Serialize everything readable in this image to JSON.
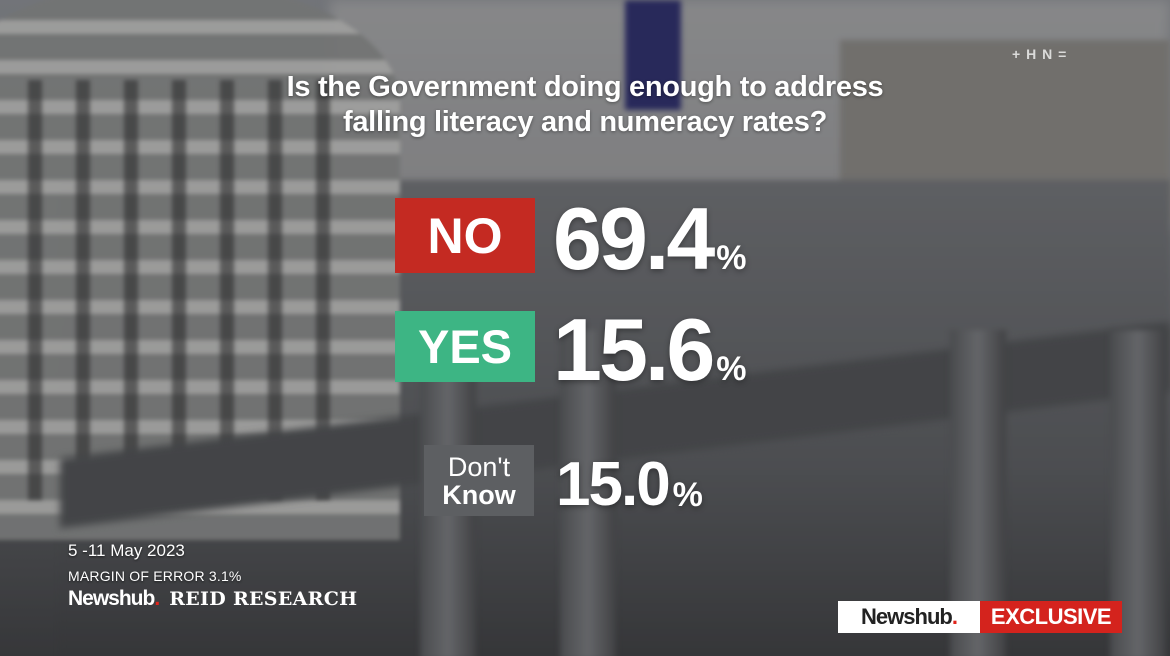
{
  "question": {
    "line1": "Is the Government doing enough to address",
    "line2": "falling literacy and numeracy rates?"
  },
  "chart_data": {
    "type": "table",
    "title": "Is the Government doing enough to address falling literacy and numeracy rates?",
    "categories": [
      "NO",
      "YES",
      "Don't Know"
    ],
    "values": [
      69.4,
      15.6,
      15.0
    ],
    "rows": [
      {
        "label": "NO",
        "value": "69.4",
        "unit": "%",
        "color": "#c42a22"
      },
      {
        "label": "YES",
        "value": "15.6",
        "unit": "%",
        "color": "#3db584"
      },
      {
        "label_line1": "Don't",
        "label_line2": "Know",
        "value": "15.0",
        "unit": "%",
        "color": "#5d5f62"
      }
    ]
  },
  "footer": {
    "date": "5 -11 May 2023",
    "margin": "MARGIN OF ERROR 3.1%",
    "brand_left": "Newshub",
    "brand_dot": ".",
    "research": "REID RESEARCH"
  },
  "corner_logo": "+ H N =",
  "badge": {
    "brand": "Newshub",
    "dot": ".",
    "label": "EXCLUSIVE"
  }
}
